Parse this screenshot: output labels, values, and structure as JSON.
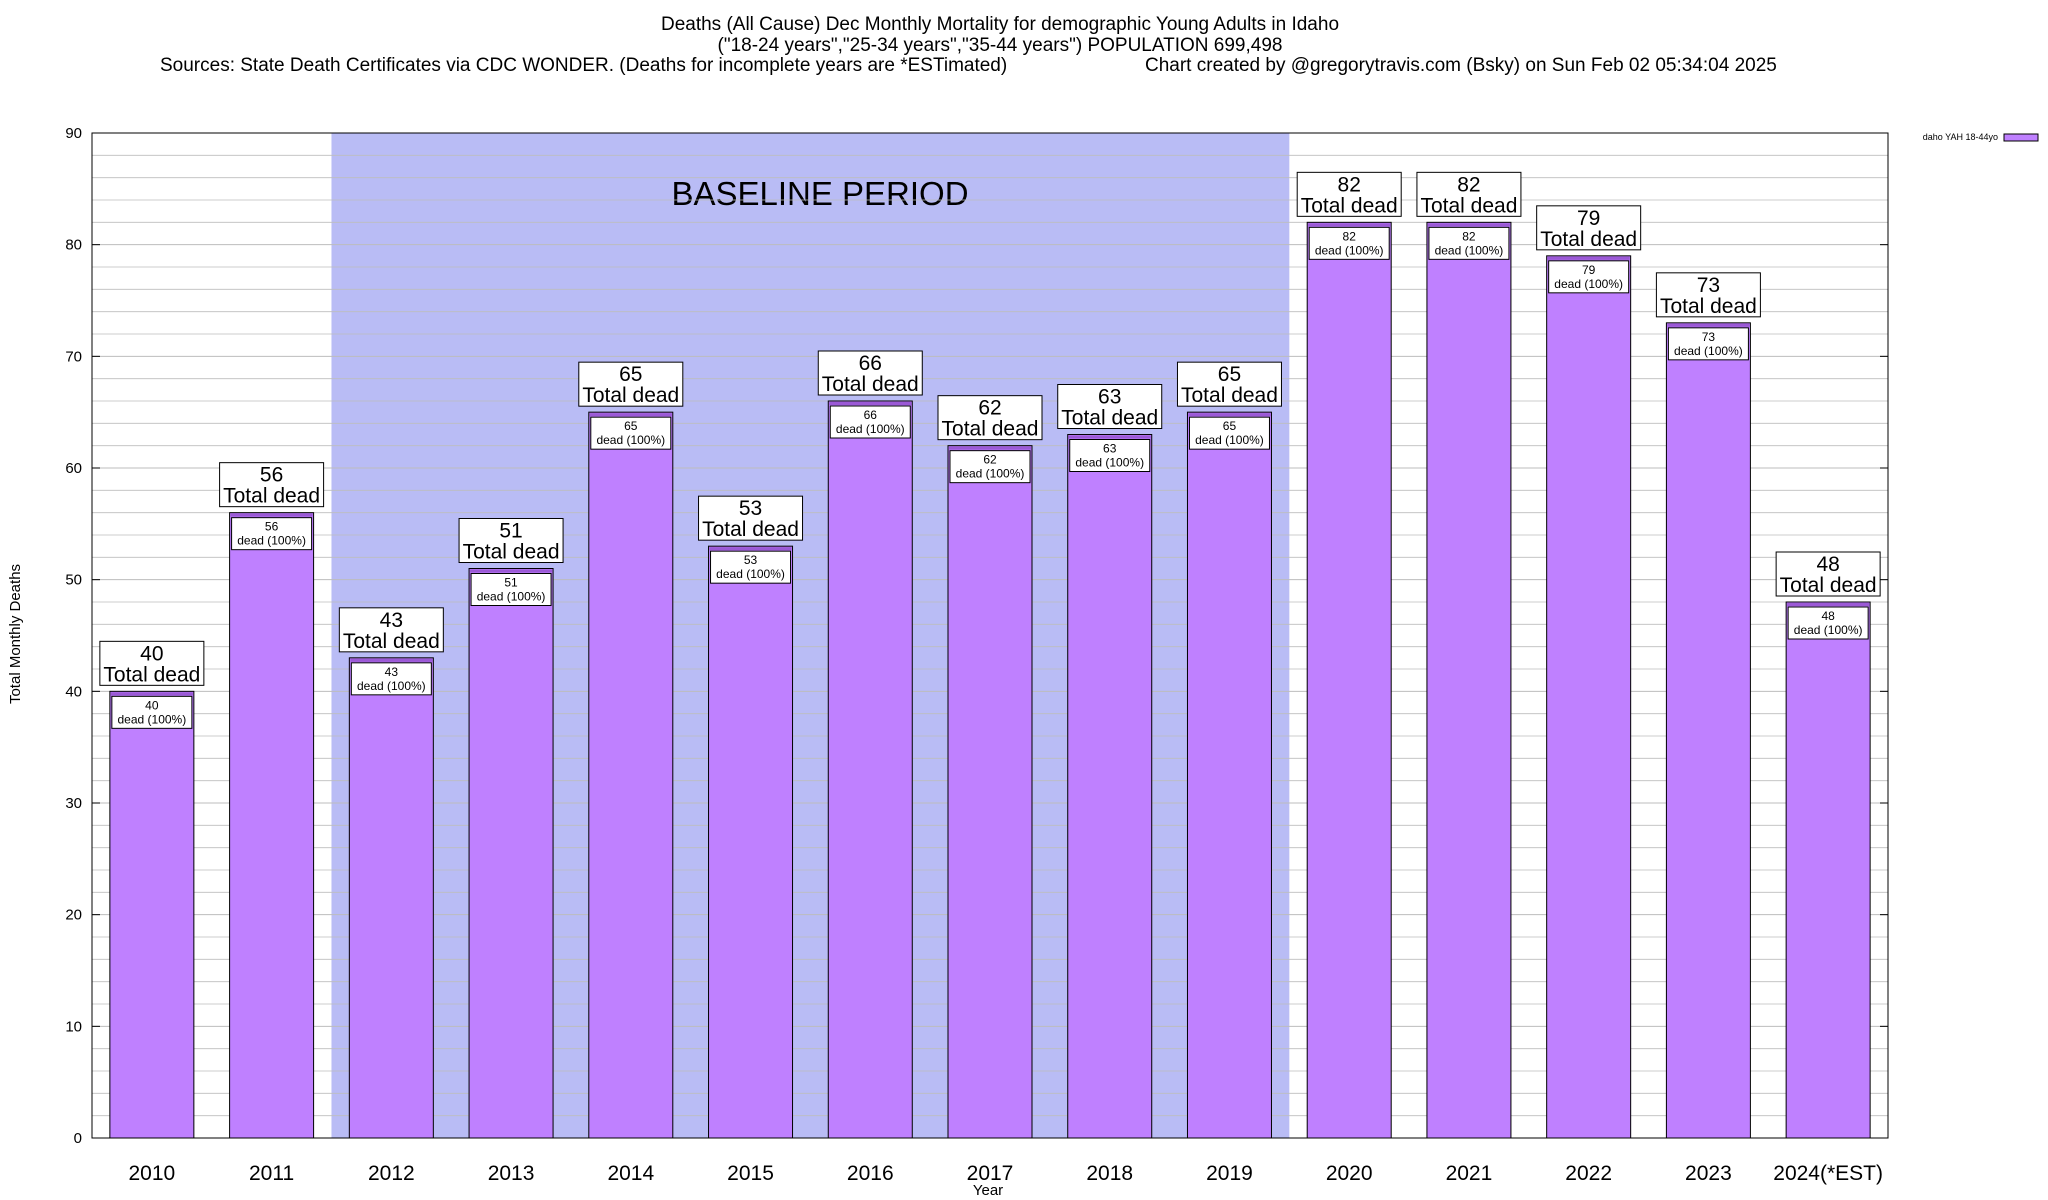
{
  "chart_data": {
    "type": "bar",
    "title_lines": [
      "Deaths (All Cause) Dec Monthly Mortality for demographic Young Adults in Idaho",
      "(\"18-24 years\",\"25-34 years\",\"35-44 years\") POPULATION 699,498",
      "Sources: State Death Certificates via CDC WONDER. (Deaths for incomplete years are *ESTimated)",
      "Chart created by @gregorytravis.com (Bsky) on Sun Feb 02 05:34:04 2025"
    ],
    "categories": [
      "2010",
      "2011",
      "2012",
      "2013",
      "2014",
      "2015",
      "2016",
      "2017",
      "2018",
      "2019",
      "2020",
      "2021",
      "2022",
      "2023",
      "2024(*EST)"
    ],
    "values": [
      40,
      56,
      43,
      51,
      65,
      53,
      66,
      62,
      63,
      65,
      82,
      82,
      79,
      73,
      48
    ],
    "bar_label_total": "Total dead",
    "bar_label_inner": "dead (100%)",
    "baseline_period": {
      "label": "BASELINE PERIOD",
      "start": "2012",
      "end": "2019"
    },
    "xlabel": "Year",
    "ylabel": "Total Monthly Deaths",
    "ylim": [
      0,
      90
    ],
    "yticks": [
      0,
      10,
      20,
      30,
      40,
      50,
      60,
      70,
      80,
      90
    ],
    "legend": {
      "label": "daho YAH 18-44yo",
      "position": "top-right"
    },
    "colors": {
      "bar": "#bf80ff",
      "bar_edge": "#000000",
      "baseline": "#b9bcf5",
      "grid": "#bdbdbd",
      "top_stripe": "#9b59d6"
    }
  }
}
